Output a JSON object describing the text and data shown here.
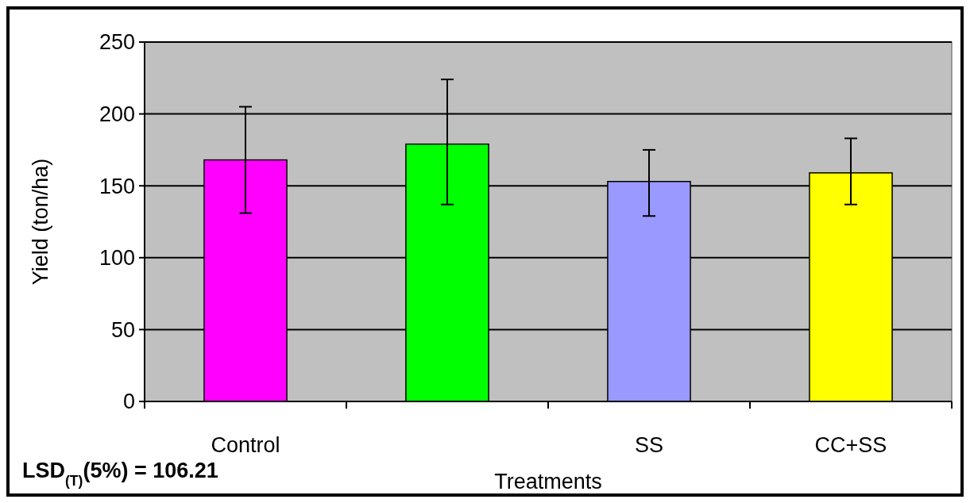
{
  "chart_data": {
    "type": "bar",
    "xlabel": "Treatments",
    "ylabel": "Yield (ton/ha)",
    "categories": [
      "Control",
      null,
      "SS",
      "CC+SS"
    ],
    "values": [
      168,
      179,
      153,
      159
    ],
    "colors": [
      "#ff00ff",
      "#00ff00",
      "#9999ff",
      "#ffff00"
    ],
    "errors": [
      [
        131,
        205
      ],
      [
        137,
        224
      ],
      [
        129,
        175
      ],
      [
        137,
        183
      ]
    ],
    "ylim": [
      0,
      250
    ],
    "yticks": [
      0,
      50,
      100,
      150,
      200,
      250
    ],
    "grid": "y",
    "annotations": [
      "LSD$_{(T)}$(5%) = 106.21"
    ]
  }
}
